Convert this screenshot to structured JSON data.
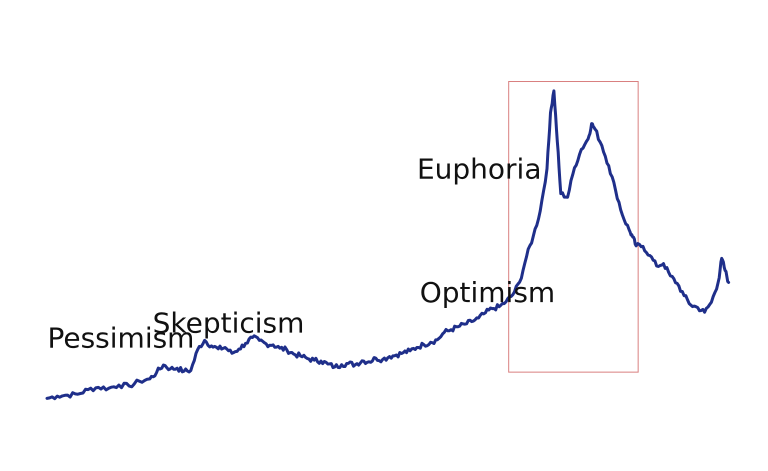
{
  "chart_data": {
    "type": "line",
    "title": "",
    "xlabel": "",
    "ylabel": "",
    "grid": false,
    "legend": "none",
    "line_color": "#1f2f8a",
    "highlight_color": "#d98080",
    "ylim": [
      0,
      100
    ],
    "xlim": [
      0,
      100
    ],
    "highlight_region": {
      "x_start": 67.4,
      "x_end": 86.3,
      "y_start": 8.6,
      "y_end": 98.3
    },
    "series": [
      {
        "values": [
          [
            0,
            0.5
          ],
          [
            1.5,
            1.2
          ],
          [
            3,
            1.5
          ],
          [
            4.5,
            1.8
          ],
          [
            6,
            3.2
          ],
          [
            7.5,
            3.9
          ],
          [
            9,
            3.6
          ],
          [
            10.5,
            4.6
          ],
          [
            12,
            4.3
          ],
          [
            13.5,
            5.8
          ],
          [
            15,
            6.5
          ],
          [
            16,
            8.5
          ],
          [
            17,
            10.8
          ],
          [
            18,
            9.6
          ],
          [
            19,
            9.8
          ],
          [
            20,
            8.9
          ],
          [
            21,
            9.1
          ],
          [
            22,
            15.6
          ],
          [
            23,
            18.4
          ],
          [
            24,
            16.7
          ],
          [
            25,
            15.8
          ],
          [
            26,
            16.2
          ],
          [
            27,
            14.4
          ],
          [
            28,
            15.7
          ],
          [
            29,
            17.5
          ],
          [
            30,
            19.3
          ],
          [
            31,
            18.4
          ],
          [
            32,
            17.3
          ],
          [
            33,
            17.0
          ],
          [
            34,
            16.0
          ],
          [
            35,
            15.5
          ],
          [
            36,
            14.2
          ],
          [
            37,
            13.6
          ],
          [
            38,
            12.8
          ],
          [
            39,
            12.3
          ],
          [
            40,
            12.0
          ],
          [
            41,
            11.1
          ],
          [
            42,
            10.2
          ],
          [
            43,
            10.9
          ],
          [
            44,
            11.3
          ],
          [
            45,
            10.9
          ],
          [
            46,
            12.1
          ],
          [
            47,
            11.8
          ],
          [
            48,
            12.9
          ],
          [
            49,
            12.5
          ],
          [
            50,
            13.4
          ],
          [
            51,
            13.9
          ],
          [
            52,
            14.6
          ],
          [
            53,
            15.2
          ],
          [
            54,
            16.2
          ],
          [
            55,
            17.1
          ],
          [
            56,
            17.8
          ],
          [
            57,
            18.6
          ],
          [
            58,
            20.9
          ],
          [
            59,
            21.7
          ],
          [
            60,
            22.6
          ],
          [
            61,
            23.4
          ],
          [
            62,
            24.2
          ],
          [
            63,
            25.3
          ],
          [
            64,
            26.9
          ],
          [
            65,
            28.2
          ],
          [
            66,
            28.8
          ],
          [
            67,
            30.3
          ],
          [
            68,
            32.5
          ],
          [
            69,
            36.4
          ],
          [
            70,
            44.2
          ],
          [
            71,
            50.6
          ],
          [
            72,
            58.3
          ],
          [
            73,
            71.4
          ],
          [
            73.5,
            88.7
          ],
          [
            74,
            95.4
          ],
          [
            74.5,
            79.8
          ],
          [
            75,
            63.7
          ],
          [
            76,
            62.6
          ],
          [
            77,
            71.7
          ],
          [
            78,
            77.3
          ],
          [
            79,
            80.6
          ],
          [
            79.5,
            85.3
          ],
          [
            80,
            83.6
          ],
          [
            81,
            78.5
          ],
          [
            82,
            72.3
          ],
          [
            83,
            64.8
          ],
          [
            84,
            57.1
          ],
          [
            85,
            52.4
          ],
          [
            85.5,
            50.3
          ],
          [
            86,
            47.6
          ],
          [
            87,
            47.4
          ],
          [
            88,
            44.6
          ],
          [
            89,
            41.4
          ],
          [
            90,
            42.1
          ],
          [
            91,
            38.3
          ],
          [
            92,
            36.0
          ],
          [
            93,
            32.2
          ],
          [
            94,
            29.3
          ],
          [
            95,
            28.5
          ],
          [
            96,
            27.1
          ],
          [
            97,
            30.2
          ],
          [
            98,
            36.5
          ],
          [
            98.5,
            43.7
          ],
          [
            99,
            40.0
          ],
          [
            99.5,
            36.3
          ]
        ]
      }
    ],
    "annotations": [
      {
        "text": "Pessimism",
        "x": 10.8,
        "y": 16.2
      },
      {
        "text": "Skepticism",
        "x": 26.5,
        "y": 20.9
      },
      {
        "text": "Optimism",
        "x": 64.3,
        "y": 30.3
      },
      {
        "text": "Euphoria",
        "x": 63.1,
        "y": 68.3
      }
    ]
  }
}
